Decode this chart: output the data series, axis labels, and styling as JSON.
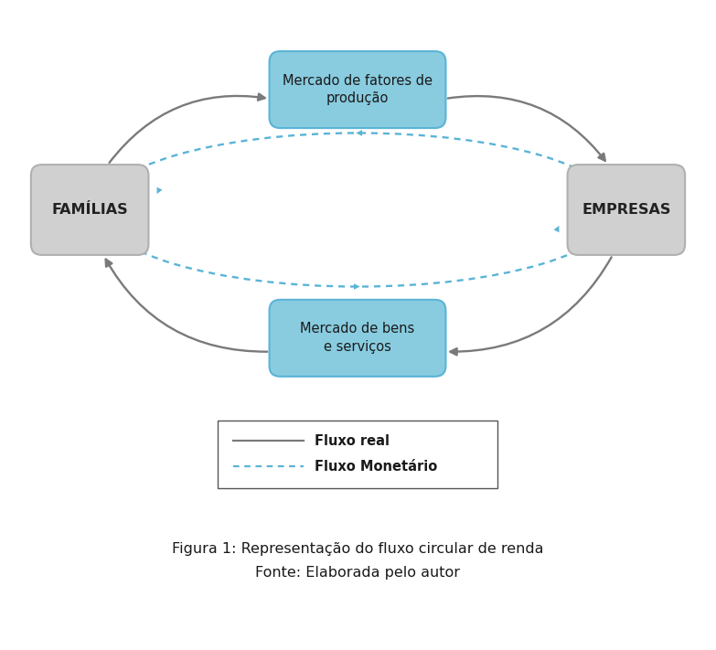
{
  "bg_color": "#ffffff",
  "box_blue_color": "#89cce0",
  "box_blue_edge": "#5ab4d6",
  "box_gray_color": "#d0d0d0",
  "box_gray_edge": "#b0b0b0",
  "arrow_real_color": "#7a7a7a",
  "arrow_monetary_color": "#5ab4d6",
  "text_blue_color": "#1a1a1a",
  "text_gray_color": "#222222",
  "familias_label": "FAMÍLIAS",
  "empresas_label": "EMPRESAS",
  "mercado_fatores_label": "Mercado de fatores de\nprodução",
  "mercado_bens_label": "Mercado de bens\ne serviços",
  "legend_real": "Fluxo real",
  "legend_monetary": "Fluxo Monetário",
  "caption_line1": "Figura 1: Representação do fluxo circular de renda",
  "caption_line2": "Fonte: Elaborada pelo autor"
}
